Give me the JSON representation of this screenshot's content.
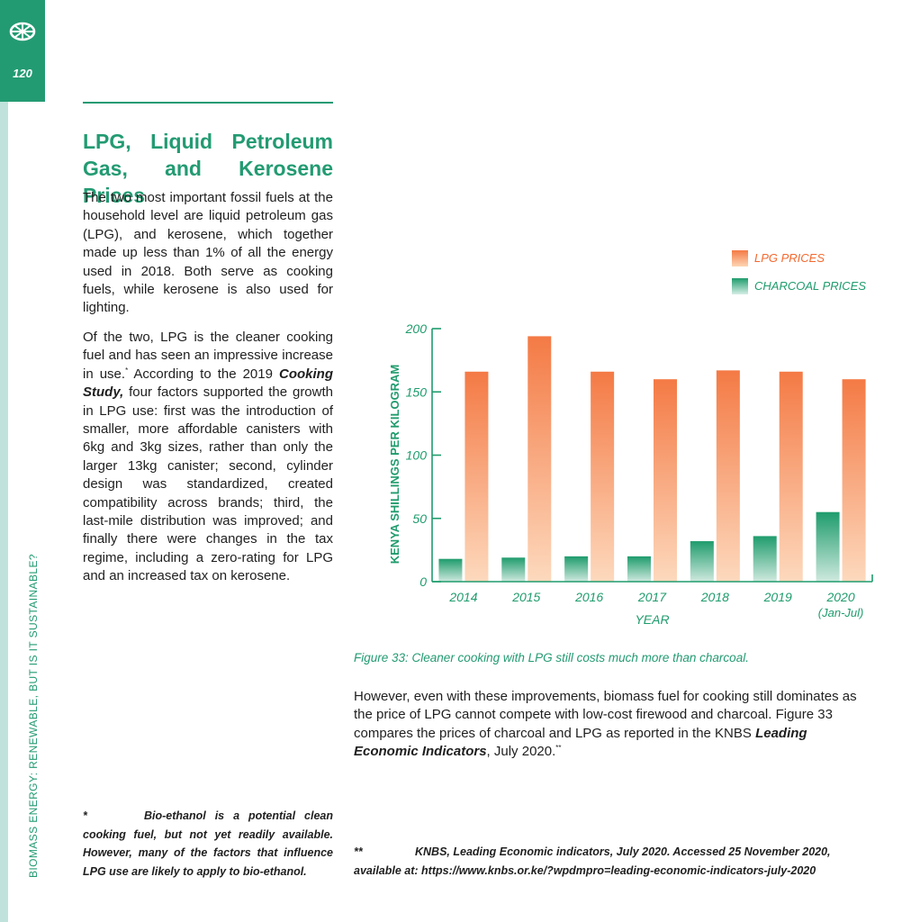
{
  "page": {
    "number": "120",
    "running_title": "BIOMASS ENERGY: RENEWABLE, BUT IS IT SUSTAINABLE?",
    "logo_icon": "globe-logo-icon"
  },
  "section": {
    "heading": "LPG, Liquid Petroleum Gas, and Kerosene Prices",
    "para1": "The two most important fossil fuels at the household level are liquid petroleum gas (LPG), and kerosene, which together made up less than 1% of all the energy used in 2018. Both serve as cooking fuels, while kerosene is also used for lighting.",
    "para2_a": "Of the two, LPG is the cleaner cooking fuel and has seen an impressive increase in use.",
    "para2_mark": "*",
    "para2_b": " According to the 2019 ",
    "para2_study": "Cooking Study,",
    "para2_c": " four factors supported the growth in LPG use: first was the introduction of smaller, more affordable canisters with 6kg and 3kg sizes, rather than only the larger 13kg canister; second, cylinder design was standardized, created compatibility across brands; third, the last-mile distribution was improved; and finally there were changes in the tax regime, including a zero-rating for LPG and an increased tax on kerosene.",
    "para3_a": "However, even with these improvements, biomass fuel for cooking still dominates as the price of LPG cannot compete with low-cost firewood and charcoal. Figure 33 compares the prices of charcoal and LPG as reported in the KNBS ",
    "para3_title": "Leading Economic Indicators",
    "para3_b": ", July 2020.",
    "para3_mark": "**"
  },
  "figure": {
    "caption": "Figure 33: Cleaner cooking with LPG still costs much more than charcoal."
  },
  "footnotes": {
    "fn1_mark": "*",
    "fn1_text": "Bio-ethanol is a potential clean cooking fuel, but not yet readily available. However, many of the factors that influence LPG use are likely to apply to bio-ethanol.",
    "fn2_mark": "**",
    "fn2_text": "KNBS, Leading Economic indicators, July 2020. Accessed 25 November 2020, available at: https://www.knbs.or.ke/?wpdmpro=leading-economic-indicators-july-2020"
  },
  "chart_data": {
    "type": "bar",
    "categories": [
      "2014",
      "2015",
      "2016",
      "2017",
      "2018",
      "2019",
      "2020"
    ],
    "category_sublabels": [
      "",
      "",
      "",
      "",
      "",
      "",
      "(Jan-Jul)"
    ],
    "series": [
      {
        "name": "LPG PRICES",
        "values": [
          166,
          194,
          166,
          160,
          167,
          166,
          160
        ],
        "color": "#f47a45"
      },
      {
        "name": "CHARCOAL PRICES",
        "values": [
          18,
          19,
          20,
          20,
          32,
          36,
          55
        ],
        "color": "#1f9c6d"
      }
    ],
    "xlabel": "YEAR",
    "ylabel": "KENYA SHILLINGS PER KILOGRAM",
    "yticks": [
      0,
      50,
      100,
      150,
      200
    ],
    "ylim": [
      0,
      200
    ],
    "grid": false,
    "legend": "top-right",
    "axis_color": "#1f9c6d"
  }
}
